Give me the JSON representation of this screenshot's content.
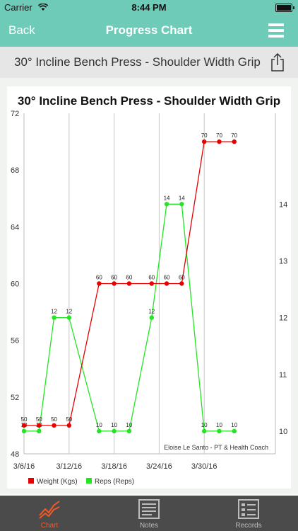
{
  "status_bar": {
    "carrier": "Carrier",
    "time": "8:44 PM"
  },
  "nav": {
    "back_label": "Back",
    "title": "Progress Chart"
  },
  "exercise_title": "30° Incline Bench Press - Shoulder Width Grip",
  "chart_data": {
    "type": "line",
    "title": "30° Incline Bench Press - Shoulder Width Grip",
    "x_tick_labels": [
      "3/6/16",
      "3/12/16",
      "3/18/16",
      "3/24/16",
      "3/30/16"
    ],
    "y_left": {
      "ylim": [
        48,
        72
      ],
      "ticks": [
        48,
        52,
        56,
        60,
        64,
        68,
        72
      ]
    },
    "y_right": {
      "ylim": [
        9.6,
        15.6
      ],
      "ticks": [
        10,
        11,
        12,
        13,
        14
      ]
    },
    "watermark": "Eloise Le Santo - PT & Health Coach",
    "series": [
      {
        "name": "Weight (Kgs)",
        "color": "#e60000",
        "axis": "left",
        "x": [
          "3/6/16",
          "3/8/16",
          "3/10/16",
          "3/12/16",
          "3/16/16",
          "3/18/16",
          "3/20/16",
          "3/23/16",
          "3/25/16",
          "3/27/16",
          "3/30/16",
          "4/1/16",
          "4/3/16"
        ],
        "values": [
          50,
          50,
          50,
          50,
          60,
          60,
          60,
          60,
          60,
          60,
          70,
          70,
          70
        ]
      },
      {
        "name": "Reps (Reps)",
        "color": "#22e622",
        "axis": "right",
        "x": [
          "3/6/16",
          "3/8/16",
          "3/10/16",
          "3/12/16",
          "3/16/16",
          "3/18/16",
          "3/20/16",
          "3/23/16",
          "3/25/16",
          "3/27/16",
          "3/30/16",
          "4/1/16",
          "4/3/16"
        ],
        "values": [
          10,
          10,
          12,
          12,
          10,
          10,
          10,
          12,
          14,
          14,
          10,
          10,
          10
        ]
      }
    ],
    "legend_position": "bottom-left"
  },
  "tabs": [
    {
      "label": "Chart",
      "active": true,
      "icon": "chart-icon"
    },
    {
      "label": "Notes",
      "active": false,
      "icon": "notes-icon"
    },
    {
      "label": "Records",
      "active": false,
      "icon": "records-icon"
    }
  ]
}
